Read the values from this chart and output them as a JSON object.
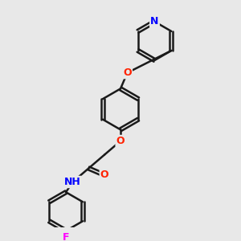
{
  "bg_color": "#e8e8e8",
  "line_color": "#1a1a1a",
  "bond_width": 1.8,
  "atom_colors": {
    "N": "#0000ff",
    "O": "#ff2200",
    "F": "#ff00ff",
    "C": "#1a1a1a"
  },
  "font_size": 9,
  "font_size_small": 8
}
